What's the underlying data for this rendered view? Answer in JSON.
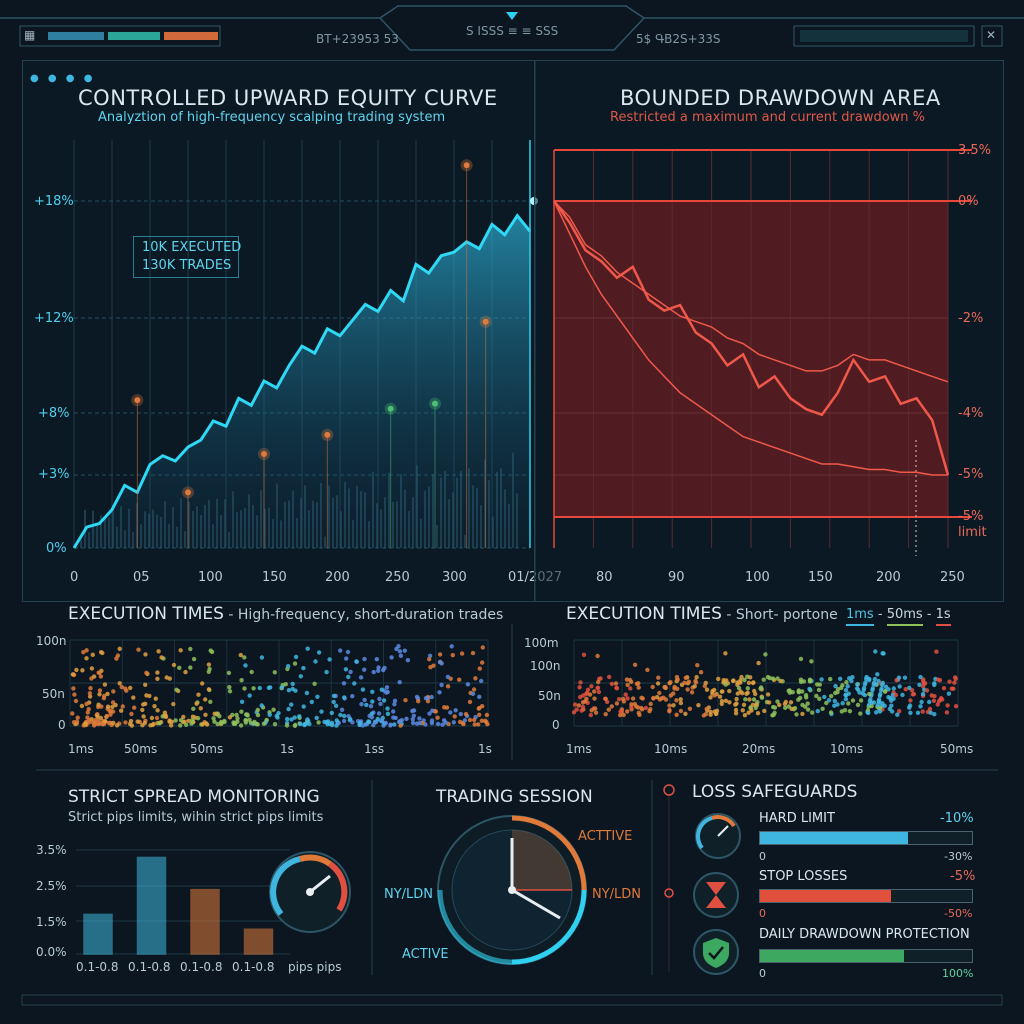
{
  "header": {
    "codes_left": "ВТ+23953   53",
    "codes_center": "S ISSS ≡ ≡ SSS",
    "codes_right": "5$   ԳB2S+33S"
  },
  "equity": {
    "title": "CONTROLLED UPWARD EQUITY CURVE",
    "subtitle": "Analyztion of high-frequency scalping trading system",
    "annotation_line1": "10K EXECUTED",
    "annotation_line2": "130K TRADES",
    "y_ticks": [
      "+18%",
      "+12%",
      "+8%",
      "+3%",
      "0%"
    ],
    "x_ticks": [
      "0",
      "05",
      "100",
      "150",
      "200",
      "250",
      "300",
      "01/2027"
    ]
  },
  "drawdown": {
    "title": "BOUNDED DRAWDOWN AREA",
    "subtitle": "Restricted a maximum and current drawdown %",
    "y_ticks": [
      "3.5%",
      "0%",
      "-2%",
      "-4%",
      "-5%",
      "-5%"
    ],
    "limit_label": "limit",
    "x_ticks": [
      "80",
      "90",
      "100",
      "150",
      "200",
      "250"
    ]
  },
  "exec_left": {
    "title": "EXECUTION TIMES",
    "subtitle": " - High-frequency, short-duration trades",
    "y_ticks": [
      "100n",
      "50n",
      "0"
    ],
    "x_ticks": [
      "1ms",
      "50ms",
      "50ms",
      "1s",
      "1ss",
      "1s"
    ]
  },
  "exec_right": {
    "title": "EXECUTION TIMES",
    "subtitle": " - Short- portone",
    "legend": [
      "1ms",
      "50ms",
      "1s"
    ],
    "y_ticks": [
      "100m",
      "100n",
      "50n",
      "0"
    ],
    "x_ticks": [
      "1ms",
      "10ms",
      "20ms",
      "10ms",
      "50ms"
    ]
  },
  "spread": {
    "title": "STRICT SPREAD MONITORING",
    "subtitle": "Strict pips limits, wihin strict pips limits",
    "y_ticks": [
      "3.5%",
      "2.5%",
      "1.5%",
      "0.0%"
    ],
    "x_ticks": [
      "0.1-0.8",
      "0.1-0.8",
      "0.1-0.8",
      "0.1-0.8",
      "pips pips"
    ]
  },
  "session": {
    "title": "TRADING SESSION",
    "label_active_top": "ACTTIVE",
    "label_left": "NY/LDN",
    "label_right": "NY/LDN",
    "label_active_bottom": "ACTIVE"
  },
  "safeguards": {
    "title": "LOSS SAFEGUARDS",
    "items": [
      {
        "label": "HARD LIMIT",
        "value": "-10%",
        "min": "0",
        "max": "-30%",
        "fill": 0.7,
        "color": "#3fb6e0",
        "icon": "gauge-icon"
      },
      {
        "label": "STOP LOSSES",
        "value": "-5%",
        "min": "0",
        "max": "-50%",
        "fill": 0.62,
        "color": "#e0503c",
        "icon": "hourglass-icon"
      },
      {
        "label": "DAILY DRAWDOWN PROTECTION",
        "value": "",
        "min": "0",
        "max": "100%",
        "fill": 0.68,
        "color": "#3ca860",
        "icon": "shield-check-icon"
      }
    ]
  },
  "colors": {
    "cyan": "#2fd0f0",
    "red": "#e8483c",
    "orange": "#e07a3a",
    "green": "#4cc070"
  },
  "chart_data": [
    {
      "type": "line",
      "title": "CONTROLLED UPWARD EQUITY CURVE",
      "y_ticks": [
        "0%",
        "+3%",
        "+8%",
        "+12%",
        "+18%"
      ],
      "ylim": [
        0,
        20
      ],
      "x": [
        0,
        10,
        20,
        30,
        40,
        50,
        60,
        70,
        80,
        90,
        100,
        110,
        120,
        130,
        140,
        150,
        160,
        170,
        180,
        190,
        200,
        210,
        220,
        230,
        240,
        250,
        260,
        270,
        280,
        290,
        300,
        310,
        320,
        330,
        340,
        350,
        360
      ],
      "values": [
        0,
        1.2,
        1.4,
        2.2,
        3.6,
        3.2,
        4.8,
        5.3,
        5.0,
        5.8,
        6.2,
        7.3,
        7.0,
        8.6,
        8.2,
        9.6,
        9.2,
        10.5,
        11.6,
        11.2,
        12.6,
        12.2,
        13.1,
        14.0,
        13.6,
        14.8,
        14.2,
        16.3,
        15.8,
        16.8,
        17.0,
        17.6,
        17.2,
        18.6,
        18.0,
        19.1,
        18.2
      ],
      "markers": [
        {
          "x": 50,
          "y": 8.5,
          "color": "orange"
        },
        {
          "x": 90,
          "y": 3.2,
          "color": "orange"
        },
        {
          "x": 150,
          "y": 5.4,
          "color": "orange"
        },
        {
          "x": 200,
          "y": 6.5,
          "color": "orange"
        },
        {
          "x": 250,
          "y": 8.0,
          "color": "green"
        },
        {
          "x": 285,
          "y": 8.3,
          "color": "green"
        },
        {
          "x": 310,
          "y": 22.0,
          "color": "orange"
        },
        {
          "x": 325,
          "y": 13.0,
          "color": "orange"
        }
      ]
    },
    {
      "type": "area",
      "title": "BOUNDED DRAWDOWN AREA",
      "y_ticks": [
        "3.5%",
        "0%",
        "-2%",
        "-4%",
        "-5%",
        "-5% limit"
      ],
      "ylim": [
        -5.5,
        3.5
      ],
      "x": [
        0,
        10,
        20,
        30,
        40,
        50,
        60,
        70,
        80,
        90,
        100,
        110,
        120,
        130,
        140,
        150,
        160,
        170,
        180,
        190,
        200,
        210,
        220,
        230,
        240,
        250
      ],
      "series": [
        {
          "values": [
            0,
            -0.4,
            -0.9,
            -1.1,
            -1.4,
            -1.2,
            -1.8,
            -2.0,
            -1.9,
            -2.4,
            -2.6,
            -3.0,
            -2.8,
            -3.4,
            -3.2,
            -3.6,
            -3.8,
            -3.9,
            -3.5,
            -2.9,
            -3.3,
            -3.2,
            -3.7,
            -3.6,
            -4.0,
            -5.0
          ]
        },
        {
          "values": [
            0,
            -0.3,
            -0.8,
            -1.0,
            -1.3,
            -1.5,
            -1.7,
            -1.9,
            -2.1,
            -2.2,
            -2.3,
            -2.5,
            -2.6,
            -2.8,
            -2.9,
            -3.0,
            -3.1,
            -3.1,
            -3.0,
            -2.8,
            -2.9,
            -2.9,
            -3.0,
            -3.1,
            -3.2,
            -3.3
          ]
        },
        {
          "values": [
            0,
            -0.6,
            -1.2,
            -1.7,
            -2.1,
            -2.5,
            -2.9,
            -3.2,
            -3.5,
            -3.7,
            -3.9,
            -4.1,
            -4.3,
            -4.4,
            -4.5,
            -4.6,
            -4.7,
            -4.8,
            -4.8,
            -4.85,
            -4.9,
            -4.9,
            -4.95,
            -4.95,
            -5.0,
            -5.0
          ]
        }
      ]
    },
    {
      "type": "bar",
      "title": "STRICT SPREAD MONITORING",
      "categories": [
        "0.1-0.8",
        "0.1-0.8",
        "0.1-0.8",
        "0.1-0.8"
      ],
      "values": [
        1.6,
        3.9,
        2.6,
        1.0
      ],
      "colors": [
        "#3fb6e0",
        "#3fb6e0",
        "#e07a3a",
        "#e07a3a"
      ],
      "ylim": [
        0,
        4.2
      ]
    }
  ]
}
